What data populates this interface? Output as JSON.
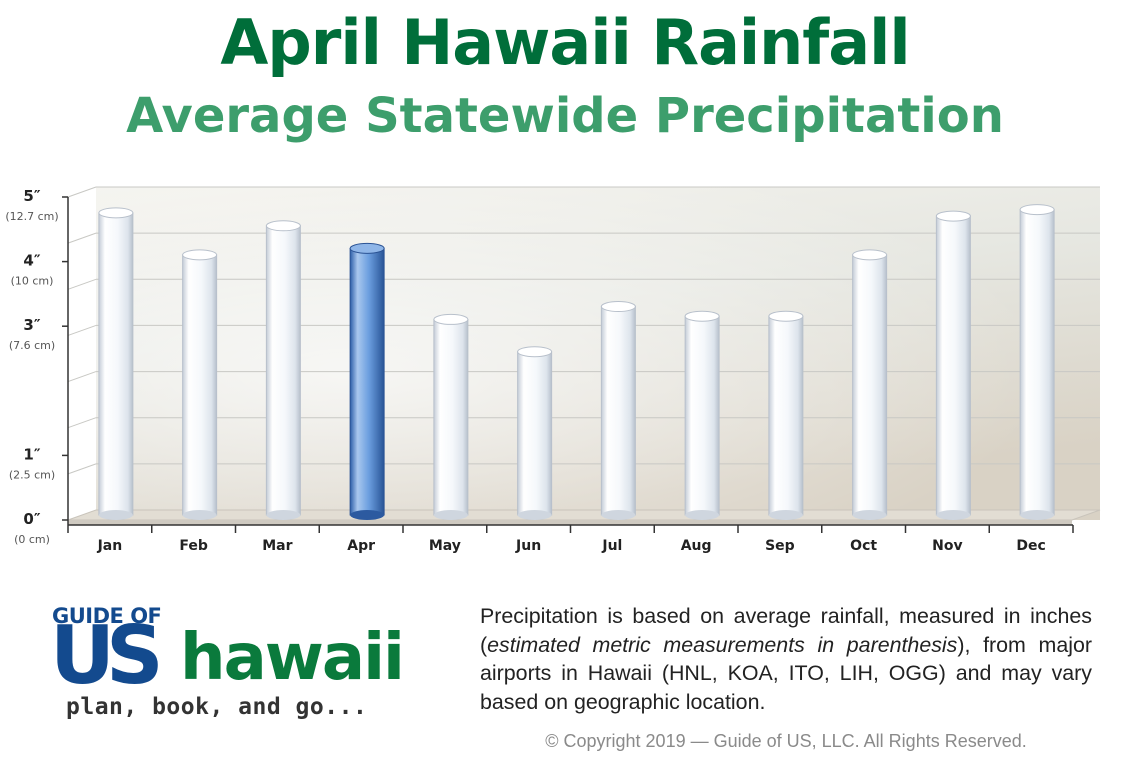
{
  "header": {
    "title": "April Hawaii Rainfall",
    "subtitle": "Average Statewide Precipitation"
  },
  "chart_data": {
    "type": "bar",
    "title": "April Hawaii Rainfall",
    "subtitle": "Average Statewide Precipitation",
    "xlabel": "",
    "ylabel": "",
    "categories": [
      "Jan",
      "Feb",
      "Mar",
      "Apr",
      "May",
      "Jun",
      "Jul",
      "Aug",
      "Sep",
      "Oct",
      "Nov",
      "Dec"
    ],
    "series": [
      {
        "values": [
          4.6,
          3.95,
          4.4,
          4.05,
          2.95,
          2.45,
          3.15,
          3.0,
          3.0,
          3.95,
          4.55,
          4.65
        ]
      }
    ],
    "highlight_index": 3,
    "highlight_color": "#4f86cf",
    "bar_color": "#f2f6fa",
    "y_ticks": [
      {
        "label": "0″",
        "sub": "(0 cm)",
        "value": 0
      },
      {
        "label": "1″",
        "sub": "(2.5 cm)",
        "value": 1
      },
      {
        "label": "3″",
        "sub": "(7.6 cm)",
        "value": 3
      },
      {
        "label": "4″",
        "sub": "(10 cm)",
        "value": 4
      },
      {
        "label": "5″",
        "sub": "(12.7 cm)",
        "value": 5
      }
    ],
    "ylim": [
      0,
      5
    ],
    "grid": true
  },
  "footer": {
    "logo": {
      "guide": "GUIDE OF",
      "us": "US",
      "hawaii": "hawaii",
      "tagline": "plan, book, and go..."
    },
    "description_parts": [
      "Precipitation is based on average rainfall, measured in inches (",
      "estimated metric measurements in parenthesis",
      "), from major airports in Hawaii (HNL, KOA, ITO, LIH, OGG) and may vary based on geographic location."
    ],
    "copyright": "© Copyright 2019 — Guide of US, LLC. All Rights Reserved."
  }
}
